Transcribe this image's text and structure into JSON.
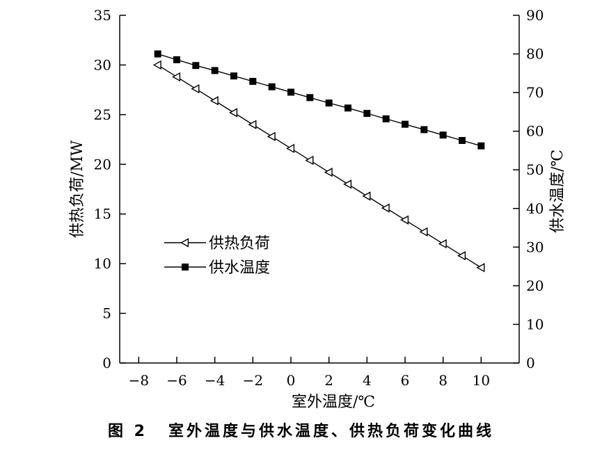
{
  "chart_data": {
    "type": "line",
    "x": [
      -7,
      -6,
      -5,
      -4,
      -3,
      -2,
      -1,
      0,
      1,
      2,
      3,
      4,
      5,
      6,
      7,
      8,
      9,
      10
    ],
    "xlabel": "室外温度/℃",
    "xlim": [
      -9,
      12
    ],
    "xticks": [
      -8,
      -6,
      -4,
      -2,
      0,
      2,
      4,
      6,
      8,
      10
    ],
    "ylabel_left": "供热负荷/MW",
    "ylim_left": [
      0,
      35
    ],
    "yticks_left": [
      0,
      5,
      10,
      15,
      20,
      25,
      30,
      35
    ],
    "ylabel_right": "供水温度/℃",
    "ylim_right": [
      0,
      90
    ],
    "yticks_right": [
      0,
      10,
      20,
      30,
      40,
      50,
      60,
      70,
      80,
      90
    ],
    "grid": false,
    "legend_position": "center-left",
    "series": [
      {
        "name": "供热负荷",
        "axis": "left",
        "marker": "open-triangle-left",
        "values": [
          30.0,
          28.8,
          27.6,
          26.4,
          25.2,
          24.0,
          22.8,
          21.6,
          20.4,
          19.2,
          18.0,
          16.8,
          15.6,
          14.4,
          13.2,
          12.0,
          10.8,
          9.6
        ]
      },
      {
        "name": "供水温度",
        "axis": "right",
        "marker": "filled-square",
        "values": [
          80.0,
          78.5,
          77.0,
          75.7,
          74.3,
          72.9,
          71.5,
          70.1,
          68.7,
          67.3,
          66.0,
          64.6,
          63.2,
          61.8,
          60.4,
          59.0,
          57.6,
          56.2
        ]
      }
    ]
  },
  "caption": {
    "number": "图 2",
    "text": "室外温度与供水温度、供热负荷变化曲线"
  }
}
